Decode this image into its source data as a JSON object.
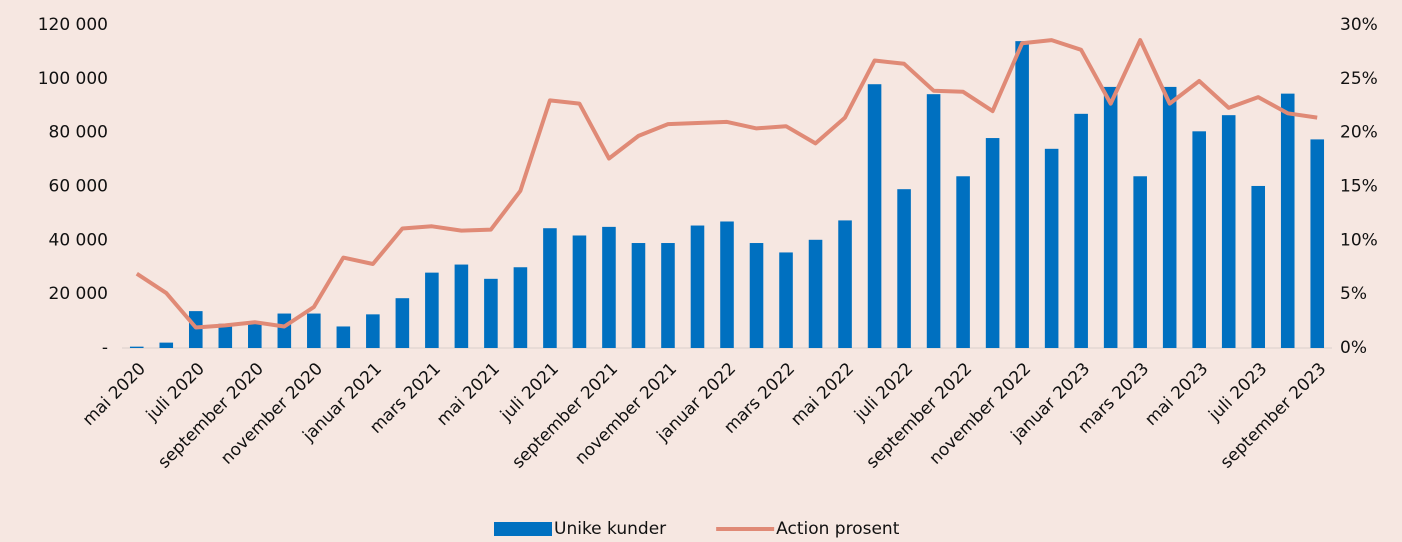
{
  "chart_data": {
    "type": "bar-line",
    "categories": [
      "mai 2020",
      null,
      "juli 2020",
      null,
      "september 2020",
      null,
      "november 2020",
      null,
      "januar 2021",
      null,
      "mars 2021",
      null,
      "mai 2021",
      null,
      "juli 2021",
      null,
      "september 2021",
      null,
      "november 2021",
      null,
      "januar 2022",
      null,
      "mars 2022",
      null,
      "mai 2022",
      null,
      "juli 2022",
      null,
      "september 2022",
      null,
      "november 2022",
      null,
      "januar 2023",
      null,
      "mars 2023",
      null,
      "mai 2023",
      null,
      "juli 2023",
      null,
      "september 2023"
    ],
    "series": [
      {
        "name": "Unike kunder",
        "type": "bar",
        "color": "#0070c0",
        "axis": "y",
        "values": [
          500,
          2000,
          13700,
          9000,
          9000,
          12800,
          12800,
          8000,
          12500,
          18500,
          28000,
          31000,
          25700,
          30000,
          44500,
          41800,
          45000,
          39000,
          39000,
          45500,
          47000,
          39000,
          35500,
          40200,
          47400,
          98000,
          59000,
          94300,
          63800,
          78000,
          114000,
          74000,
          87000,
          97000,
          63800,
          97000,
          80500,
          86500,
          60200,
          94500,
          77500
        ]
      },
      {
        "name": "Action prosent",
        "type": "line",
        "color": "#e08a76",
        "axis": "y2",
        "values": [
          6.9,
          5.1,
          1.9,
          2.1,
          2.4,
          2.0,
          3.8,
          8.4,
          7.8,
          11.1,
          11.3,
          10.9,
          11.0,
          14.6,
          23.0,
          22.7,
          17.6,
          19.7,
          20.8,
          20.9,
          21.0,
          20.4,
          20.6,
          19.0,
          21.4,
          26.7,
          26.4,
          23.9,
          23.8,
          22.0,
          28.3,
          28.6,
          27.7,
          22.7,
          28.6,
          22.7,
          24.8,
          22.3,
          23.3,
          21.8,
          21.4
        ]
      }
    ],
    "ylim": [
      0,
      120000
    ],
    "yticks": [
      {
        "value": 0,
        "label": "-"
      },
      {
        "value": 20000,
        "label": "20 000"
      },
      {
        "value": 40000,
        "label": "40 000"
      },
      {
        "value": 60000,
        "label": "60 000"
      },
      {
        "value": 80000,
        "label": "80 000"
      },
      {
        "value": 100000,
        "label": "100 000"
      },
      {
        "value": 120000,
        "label": "120 000"
      }
    ],
    "y2lim": [
      0,
      30
    ],
    "y2ticks": [
      {
        "value": 0,
        "label": "0%"
      },
      {
        "value": 5,
        "label": "5%"
      },
      {
        "value": 10,
        "label": "10%"
      },
      {
        "value": 15,
        "label": "15%"
      },
      {
        "value": 20,
        "label": "20%"
      },
      {
        "value": 25,
        "label": "25%"
      },
      {
        "value": 30,
        "label": "30%"
      }
    ],
    "grid": false,
    "legend": "bottom"
  }
}
